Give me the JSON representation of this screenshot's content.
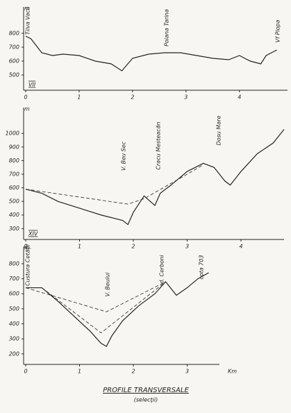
{
  "title": "PROFILE TRANSVERSALE",
  "subtitle": "(selecţii)",
  "chart_data": [
    {
      "type": "line",
      "panel": "VII",
      "unit": "m",
      "annotations": [
        "Tilva Vacii",
        "Poiana Tarina",
        "Vf Plopa"
      ],
      "xlim": [
        0,
        4.9
      ],
      "xticks": [
        0,
        1,
        2,
        3,
        4
      ],
      "ylim": [
        390,
        990
      ],
      "yticks": [
        500,
        600,
        700,
        800
      ],
      "series": [
        {
          "color": "#222",
          "dashed": false,
          "x": [
            0,
            0.1,
            0.3,
            0.5,
            0.7,
            1.0,
            1.3,
            1.6,
            1.8,
            2.0,
            2.3,
            2.6,
            2.9,
            3.2,
            3.5,
            3.8,
            4.0,
            4.2,
            4.4,
            4.5,
            4.7
          ],
          "values": [
            780,
            760,
            660,
            640,
            650,
            640,
            600,
            580,
            530,
            620,
            650,
            660,
            660,
            640,
            620,
            610,
            640,
            600,
            580,
            640,
            680
          ]
        }
      ]
    },
    {
      "type": "line",
      "panel": "XIV",
      "unit": "m",
      "annotations": [
        "V. Beu Sec",
        "Cracu Mesteacăn",
        "Dosu Mare"
      ],
      "xlim": [
        0,
        4.8
      ],
      "xticks": [
        0,
        1,
        2,
        3,
        4
      ],
      "ylim": [
        220,
        1190
      ],
      "yticks": [
        300,
        400,
        500,
        600,
        700,
        800,
        900,
        1000
      ],
      "series": [
        {
          "color": "#222",
          "dashed": false,
          "x": [
            0,
            0.3,
            0.6,
            1.0,
            1.4,
            1.8,
            1.9,
            2.0,
            2.2,
            2.4,
            2.5,
            2.7,
            3.0,
            3.3,
            3.5,
            3.7,
            3.8,
            4.0,
            4.3,
            4.6,
            4.8
          ],
          "values": [
            590,
            560,
            500,
            450,
            400,
            360,
            330,
            420,
            540,
            470,
            560,
            620,
            720,
            780,
            750,
            650,
            620,
            720,
            850,
            930,
            1030
          ]
        },
        {
          "color": "#222",
          "dashed": true,
          "x": [
            0,
            1.9,
            2.2,
            3.0,
            3.3
          ],
          "values": [
            590,
            480,
            520,
            700,
            770
          ]
        }
      ]
    },
    {
      "type": "line",
      "unit": "m",
      "xlabel": "Km",
      "annotations": [
        "Custura Cetății",
        "V. Beului",
        "d. Cerboni",
        "cota 703"
      ],
      "xlim": [
        0,
        3.6
      ],
      "xticks": [
        0,
        1,
        2,
        3
      ],
      "ylim": [
        130,
        915
      ],
      "yticks": [
        200,
        300,
        400,
        500,
        600,
        700,
        800
      ],
      "series": [
        {
          "color": "#222",
          "dashed": false,
          "x": [
            0,
            0.3,
            0.6,
            0.9,
            1.2,
            1.4,
            1.5,
            1.6,
            1.8,
            2.1,
            2.4,
            2.6,
            2.8,
            3.0,
            3.2,
            3.4
          ],
          "values": [
            640,
            640,
            550,
            450,
            350,
            270,
            250,
            320,
            420,
            520,
            600,
            680,
            590,
            640,
            700,
            740
          ]
        },
        {
          "color": "#222",
          "dashed": true,
          "x": [
            0,
            1.5,
            2.6
          ],
          "values": [
            640,
            480,
            680
          ]
        },
        {
          "color": "#222",
          "dashed": true,
          "x": [
            0.3,
            1.4,
            2.6
          ],
          "values": [
            640,
            340,
            680
          ]
        }
      ]
    }
  ]
}
